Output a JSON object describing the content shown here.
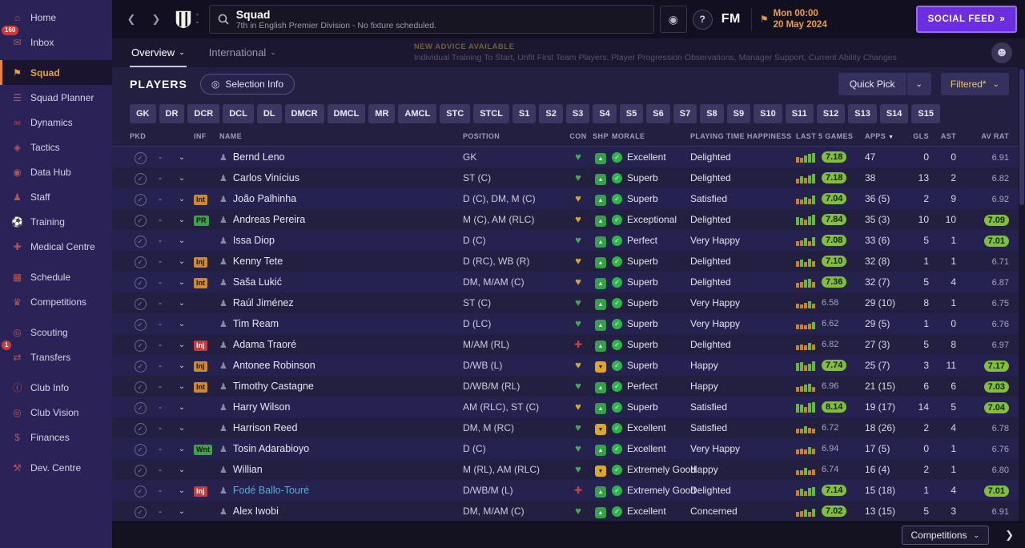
{
  "icons": {
    "back": "❮",
    "forward": "❯",
    "caret_up": "⌃",
    "caret_down": "⌄",
    "double_arrow": "»",
    "question": "?",
    "world": "◉",
    "flag": "⚑",
    "check": "✓",
    "player": "♟",
    "sort_desc": "▼",
    "next_page": "❯",
    "selection": "◎",
    "avatar": "☻"
  },
  "sidebar": {
    "items": [
      {
        "id": "home",
        "label": "Home",
        "glyph": "⌂"
      },
      {
        "id": "inbox",
        "label": "Inbox",
        "glyph": "✉",
        "badge": "160"
      },
      {
        "id": "squad",
        "label": "Squad",
        "glyph": "⚑",
        "active": true,
        "group": true
      },
      {
        "id": "squad-planner",
        "label": "Squad Planner",
        "glyph": "☰"
      },
      {
        "id": "dynamics",
        "label": "Dynamics",
        "glyph": "∞"
      },
      {
        "id": "tactics",
        "label": "Tactics",
        "glyph": "◈"
      },
      {
        "id": "data-hub",
        "label": "Data Hub",
        "glyph": "◉"
      },
      {
        "id": "staff",
        "label": "Staff",
        "glyph": "♟"
      },
      {
        "id": "training",
        "label": "Training",
        "glyph": "⚽"
      },
      {
        "id": "medical-centre",
        "label": "Medical Centre",
        "glyph": "✚"
      },
      {
        "id": "schedule",
        "label": "Schedule",
        "glyph": "▦",
        "group": true
      },
      {
        "id": "competitions",
        "label": "Competitions",
        "glyph": "♛"
      },
      {
        "id": "scouting",
        "label": "Scouting",
        "glyph": "◎",
        "group": true
      },
      {
        "id": "transfers",
        "label": "Transfers",
        "glyph": "⇄",
        "badge": "1"
      },
      {
        "id": "club-info",
        "label": "Club Info",
        "glyph": "ⓘ",
        "group": true
      },
      {
        "id": "club-vision",
        "label": "Club Vision",
        "glyph": "◎"
      },
      {
        "id": "finances",
        "label": "Finances",
        "glyph": "$"
      },
      {
        "id": "dev-centre",
        "label": "Dev. Centre",
        "glyph": "⚒",
        "group": true
      }
    ]
  },
  "header": {
    "title": "Squad",
    "subtitle": "7th in English Premier Division - No fixture scheduled.",
    "fm_logo": "FM",
    "date_line1": "Mon 00:00",
    "date_line2": "20 May 2024",
    "social_feed": "SOCIAL FEED"
  },
  "tabs": {
    "overview": "Overview",
    "international": "International",
    "advice_title": "NEW ADVICE AVAILABLE",
    "advice_text": "Individual Training To Start, Unfit First Team Players, Player Progression Observations, Manager Support, Current Ability Changes"
  },
  "toolbar": {
    "players_label": "PLAYERS",
    "selection_info": "Selection Info",
    "quick_pick": "Quick Pick",
    "filtered": "Filtered*"
  },
  "position_filters": [
    "GK",
    "DR",
    "DCR",
    "DCL",
    "DL",
    "DMCR",
    "DMCL",
    "MR",
    "AMCL",
    "STC",
    "STCL",
    "S1",
    "S2",
    "S3",
    "S4",
    "S5",
    "S6",
    "S7",
    "S8",
    "S9",
    "S10",
    "S11",
    "S12",
    "S13",
    "S14",
    "S15"
  ],
  "footer": {
    "competitions": "Competitions"
  },
  "table": {
    "columns": [
      "PKD",
      "INF",
      "NAME",
      "POSITION",
      "CON",
      "SHP",
      "MORALE",
      "PLAYING TIME HAPPINESS",
      "LAST 5 GAMES",
      "APPS",
      "GLS",
      "AST",
      "AV RAT"
    ],
    "rows": [
      {
        "pkd": "-",
        "inf": "",
        "inf_type": "",
        "name": "Bernd Leno",
        "link": false,
        "pos": "GK",
        "con": "green",
        "shp": "green",
        "morale": "Excellent",
        "happy": "Delighted",
        "bars": [
          [
            "o",
            7
          ],
          [
            "o",
            6
          ],
          [
            "g",
            9
          ],
          [
            "g",
            11
          ],
          [
            "g",
            12
          ]
        ],
        "l5": "7.18",
        "l5g": true,
        "apps": "47",
        "gls": "0",
        "ast": "0",
        "av": "6.91",
        "avg": false
      },
      {
        "pkd": "-",
        "inf": "",
        "inf_type": "",
        "name": "Carlos Vinícius",
        "link": false,
        "pos": "ST (C)",
        "con": "green",
        "shp": "green",
        "morale": "Superb",
        "happy": "Delighted",
        "bars": [
          [
            "o",
            6
          ],
          [
            "g",
            9
          ],
          [
            "o",
            7
          ],
          [
            "g",
            10
          ],
          [
            "g",
            12
          ]
        ],
        "l5": "7.18",
        "l5g": true,
        "apps": "38",
        "gls": "13",
        "ast": "2",
        "av": "6.82",
        "avg": false
      },
      {
        "pkd": "-",
        "inf": "Int",
        "inf_type": "int",
        "name": "João Palhinha",
        "link": false,
        "pos": "D (C), DM, M (C)",
        "con": "yellow",
        "shp": "green",
        "morale": "Superb",
        "happy": "Satisfied",
        "bars": [
          [
            "o",
            7
          ],
          [
            "o",
            6
          ],
          [
            "g",
            9
          ],
          [
            "o",
            7
          ],
          [
            "g",
            11
          ]
        ],
        "l5": "7.04",
        "l5g": true,
        "apps": "36 (5)",
        "gls": "2",
        "ast": "9",
        "av": "6.92",
        "avg": false
      },
      {
        "pkd": "-",
        "inf": "PR",
        "inf_type": "pr",
        "name": "Andreas Pereira",
        "link": false,
        "pos": "M (C), AM (RLC)",
        "con": "yellow",
        "shp": "green",
        "morale": "Exceptional",
        "happy": "Delighted",
        "bars": [
          [
            "g",
            10
          ],
          [
            "g",
            9
          ],
          [
            "o",
            7
          ],
          [
            "g",
            11
          ],
          [
            "g",
            13
          ]
        ],
        "l5": "7.84",
        "l5g": true,
        "apps": "35 (3)",
        "gls": "10",
        "ast": "10",
        "av": "7.09",
        "avg": true
      },
      {
        "pkd": "-",
        "inf": "",
        "inf_type": "",
        "name": "Issa Diop",
        "link": false,
        "pos": "D (C)",
        "con": "green",
        "shp": "green",
        "morale": "Perfect",
        "happy": "Very Happy",
        "bars": [
          [
            "o",
            6
          ],
          [
            "o",
            7
          ],
          [
            "g",
            10
          ],
          [
            "o",
            6
          ],
          [
            "g",
            11
          ]
        ],
        "l5": "7.08",
        "l5g": true,
        "apps": "33 (6)",
        "gls": "5",
        "ast": "1",
        "av": "7.01",
        "avg": true
      },
      {
        "pkd": "-",
        "inf": "Inj",
        "inf_type": "injo",
        "name": "Kenny Tete",
        "link": false,
        "pos": "D (RC), WB (R)",
        "con": "yellow",
        "shp": "green",
        "morale": "Superb",
        "happy": "Delighted",
        "bars": [
          [
            "o",
            7
          ],
          [
            "g",
            9
          ],
          [
            "o",
            6
          ],
          [
            "g",
            10
          ],
          [
            "o",
            7
          ]
        ],
        "l5": "7.10",
        "l5g": true,
        "apps": "32 (8)",
        "gls": "1",
        "ast": "1",
        "av": "6.71",
        "avg": false
      },
      {
        "pkd": "-",
        "inf": "Int",
        "inf_type": "int",
        "name": "Saša Lukić",
        "link": false,
        "pos": "DM, M/AM (C)",
        "con": "yellow",
        "shp": "green",
        "morale": "Superb",
        "happy": "Delighted",
        "bars": [
          [
            "o",
            6
          ],
          [
            "o",
            7
          ],
          [
            "g",
            10
          ],
          [
            "g",
            11
          ],
          [
            "o",
            7
          ]
        ],
        "l5": "7.36",
        "l5g": true,
        "apps": "32 (7)",
        "gls": "5",
        "ast": "4",
        "av": "6.87",
        "avg": false
      },
      {
        "pkd": "-",
        "inf": "",
        "inf_type": "",
        "name": "Raúl Jiménez",
        "link": false,
        "pos": "ST (C)",
        "con": "green",
        "shp": "green",
        "morale": "Superb",
        "happy": "Very Happy",
        "bars": [
          [
            "o",
            6
          ],
          [
            "o",
            5
          ],
          [
            "o",
            7
          ],
          [
            "g",
            9
          ],
          [
            "o",
            6
          ]
        ],
        "l5": "6.58",
        "l5g": false,
        "apps": "29 (10)",
        "gls": "8",
        "ast": "1",
        "av": "6.75",
        "avg": false
      },
      {
        "pkd": "-",
        "inf": "",
        "inf_type": "",
        "name": "Tim Ream",
        "link": false,
        "pos": "D (LC)",
        "con": "green",
        "shp": "green",
        "morale": "Superb",
        "happy": "Very Happy",
        "bars": [
          [
            "o",
            6
          ],
          [
            "o",
            6
          ],
          [
            "o",
            5
          ],
          [
            "o",
            7
          ],
          [
            "g",
            9
          ]
        ],
        "l5": "6.62",
        "l5g": false,
        "apps": "29 (5)",
        "gls": "1",
        "ast": "0",
        "av": "6.76",
        "avg": false
      },
      {
        "pkd": "-",
        "inf": "Inj",
        "inf_type": "injr",
        "name": "Adama Traoré",
        "link": false,
        "pos": "M/AM (RL)",
        "con": "red",
        "shp": "green",
        "morale": "Superb",
        "happy": "Delighted",
        "bars": [
          [
            "o",
            6
          ],
          [
            "o",
            7
          ],
          [
            "o",
            6
          ],
          [
            "g",
            9
          ],
          [
            "o",
            7
          ]
        ],
        "l5": "6.82",
        "l5g": false,
        "apps": "27 (3)",
        "gls": "5",
        "ast": "8",
        "av": "6.97",
        "avg": false
      },
      {
        "pkd": "-",
        "inf": "Inj",
        "inf_type": "injo",
        "name": "Antonee Robinson",
        "link": false,
        "pos": "D/WB (L)",
        "con": "yellow",
        "shp": "yellow",
        "morale": "Superb",
        "happy": "Happy",
        "bars": [
          [
            "g",
            10
          ],
          [
            "g",
            11
          ],
          [
            "o",
            7
          ],
          [
            "g",
            9
          ],
          [
            "g",
            12
          ]
        ],
        "l5": "7.74",
        "l5g": true,
        "apps": "25 (7)",
        "gls": "3",
        "ast": "11",
        "av": "7.17",
        "avg": true
      },
      {
        "pkd": "-",
        "inf": "Int",
        "inf_type": "int",
        "name": "Timothy Castagne",
        "link": false,
        "pos": "D/WB/M (RL)",
        "con": "green",
        "shp": "green",
        "morale": "Perfect",
        "happy": "Happy",
        "bars": [
          [
            "o",
            6
          ],
          [
            "o",
            7
          ],
          [
            "g",
            9
          ],
          [
            "g",
            10
          ],
          [
            "o",
            6
          ]
        ],
        "l5": "6.96",
        "l5g": false,
        "apps": "21 (15)",
        "gls": "6",
        "ast": "6",
        "av": "7.03",
        "avg": true
      },
      {
        "pkd": "-",
        "inf": "",
        "inf_type": "",
        "name": "Harry Wilson",
        "link": false,
        "pos": "AM (RLC), ST (C)",
        "con": "yellow",
        "shp": "green",
        "morale": "Superb",
        "happy": "Satisfied",
        "bars": [
          [
            "g",
            11
          ],
          [
            "g",
            10
          ],
          [
            "o",
            7
          ],
          [
            "g",
            12
          ],
          [
            "g",
            13
          ]
        ],
        "l5": "8.14",
        "l5g": true,
        "apps": "19 (17)",
        "gls": "14",
        "ast": "5",
        "av": "7.04",
        "avg": true
      },
      {
        "pkd": "-",
        "inf": "",
        "inf_type": "",
        "name": "Harrison Reed",
        "link": false,
        "pos": "DM, M (RC)",
        "con": "green",
        "shp": "yellow",
        "morale": "Excellent",
        "happy": "Satisfied",
        "bars": [
          [
            "o",
            6
          ],
          [
            "o",
            6
          ],
          [
            "g",
            9
          ],
          [
            "o",
            7
          ],
          [
            "o",
            6
          ]
        ],
        "l5": "6.72",
        "l5g": false,
        "apps": "18 (26)",
        "gls": "2",
        "ast": "4",
        "av": "6.78",
        "avg": false
      },
      {
        "pkd": "-",
        "inf": "Wnt",
        "inf_type": "wnt",
        "name": "Tosin Adarabioyo",
        "link": false,
        "pos": "D (C)",
        "con": "green",
        "shp": "green",
        "morale": "Excellent",
        "happy": "Very Happy",
        "bars": [
          [
            "o",
            6
          ],
          [
            "o",
            7
          ],
          [
            "o",
            6
          ],
          [
            "g",
            9
          ],
          [
            "o",
            7
          ]
        ],
        "l5": "6.94",
        "l5g": false,
        "apps": "17 (5)",
        "gls": "0",
        "ast": "1",
        "av": "6.76",
        "avg": false
      },
      {
        "pkd": "-",
        "inf": "",
        "inf_type": "",
        "name": "Willian",
        "link": false,
        "pos": "M (RL), AM (RLC)",
        "con": "green",
        "shp": "yellow",
        "morale": "Extremely Good",
        "happy": "Happy",
        "bars": [
          [
            "o",
            6
          ],
          [
            "o",
            6
          ],
          [
            "g",
            9
          ],
          [
            "o",
            6
          ],
          [
            "o",
            7
          ]
        ],
        "l5": "6.74",
        "l5g": false,
        "apps": "16 (4)",
        "gls": "2",
        "ast": "1",
        "av": "6.80",
        "avg": false
      },
      {
        "pkd": "-",
        "inf": "Inj",
        "inf_type": "injr",
        "name": "Fodé Ballo-Touré",
        "link": true,
        "pos": "D/WB/M (L)",
        "con": "red",
        "shp": "green",
        "morale": "Extremely Good",
        "happy": "Delighted",
        "bars": [
          [
            "o",
            7
          ],
          [
            "g",
            9
          ],
          [
            "o",
            6
          ],
          [
            "g",
            10
          ],
          [
            "g",
            11
          ]
        ],
        "l5": "7.14",
        "l5g": true,
        "apps": "15 (18)",
        "gls": "1",
        "ast": "4",
        "av": "7.01",
        "avg": true
      },
      {
        "pkd": "-",
        "inf": "",
        "inf_type": "",
        "name": "Alex Iwobi",
        "link": false,
        "pos": "DM, M/AM (C)",
        "con": "green",
        "shp": "green",
        "morale": "Excellent",
        "happy": "Concerned",
        "bars": [
          [
            "o",
            6
          ],
          [
            "o",
            7
          ],
          [
            "g",
            9
          ],
          [
            "o",
            6
          ],
          [
            "g",
            10
          ]
        ],
        "l5": "7.02",
        "l5g": true,
        "apps": "13 (15)",
        "gls": "5",
        "ast": "3",
        "av": "6.91",
        "avg": false
      }
    ]
  }
}
